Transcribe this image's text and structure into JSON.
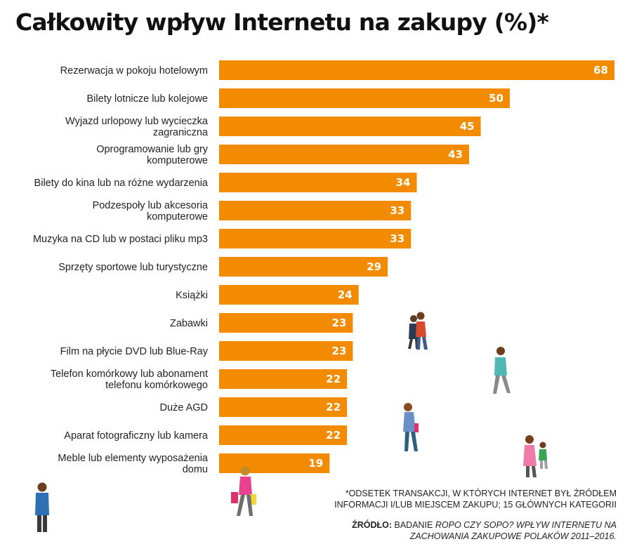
{
  "chart_data": {
    "type": "bar",
    "orientation": "horizontal",
    "title": "Całkowity wpływ Internetu na zakupy (%)*",
    "categories": [
      "Rezerwacja w pokoju hotelowym",
      "Bilety lotnicze lub kolejowe",
      "Wyjazd urlopowy lub wycieczka zagraniczna",
      "Oprogramowanie lub gry komputerowe",
      "Bilety do kina lub na różne wydarzenia",
      "Podzespoły lub akcesoria komputerowe",
      "Muzyka na CD lub w postaci pliku mp3",
      "Sprzęty sportowe lub turystyczne",
      "Książki",
      "Zabawki",
      "Film na płycie DVD lub Blue-Ray",
      "Telefon komórkowy lub abonament telefonu komórkowego",
      "Duże AGD",
      "Aparat fotograficzny lub kamera",
      "Meble lub elementy wyposażenia domu"
    ],
    "label_lines": [
      [
        "Rezerwacja w pokoju hotelowym"
      ],
      [
        "Bilety lotnicze lub kolejowe"
      ],
      [
        "Wyjazd urlopowy lub wycieczka",
        "zagraniczna"
      ],
      [
        "Oprogramowanie lub gry",
        "komputerowe"
      ],
      [
        "Bilety do kina lub na różne wydarzenia"
      ],
      [
        "Podzespoły lub akcesoria",
        "komputerowe"
      ],
      [
        "Muzyka na CD lub w postaci pliku mp3"
      ],
      [
        "Sprzęty sportowe lub turystyczne"
      ],
      [
        "Książki"
      ],
      [
        "Zabawki"
      ],
      [
        "Film na płycie DVD lub Blue-Ray"
      ],
      [
        "Telefon komórkowy lub abonament",
        "telefonu komórkowego"
      ],
      [
        "Duże AGD"
      ],
      [
        "Aparat fotograficzny lub kamera"
      ],
      [
        "Meble lub elementy wyposażenia",
        "domu"
      ]
    ],
    "values": [
      68,
      50,
      45,
      43,
      34,
      33,
      33,
      29,
      24,
      23,
      23,
      22,
      22,
      22,
      19
    ],
    "xlim": [
      0,
      68
    ],
    "bar_color": "#f28b00",
    "value_label_color": "#ffffff",
    "grid": false,
    "legend": "none"
  },
  "footnote": {
    "text": "*Odsetek transakcji, w których Internet był źródłem informacji i/lub miejscem zakupu; 15 głównych kategorii"
  },
  "source": {
    "label": "ŹRÓDŁO:",
    "prefix": " BADANIE ",
    "study_title": "ROPO czy SOPO? Wpływ Internetu na zachowania zakupowe Polaków 2011–2016."
  },
  "illustration": {
    "icons": [
      "couple-walking-icon",
      "man-walking-icon",
      "woman-walking-icon",
      "mother-with-child-icon",
      "woman-with-shopping-bags-icon",
      "man-standing-icon"
    ]
  }
}
